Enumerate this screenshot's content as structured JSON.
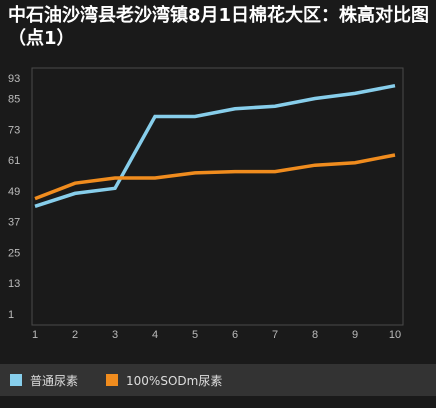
{
  "chart_data": {
    "type": "line",
    "title": "中石油沙湾县老沙湾镇8月1日棉花大区：株高对比图（点1）",
    "x": [
      "1",
      "2",
      "3",
      "4",
      "5",
      "6",
      "7",
      "8",
      "9",
      "10"
    ],
    "y_ticks": [
      "93",
      "85",
      "73",
      "61",
      "49",
      "37",
      "25",
      "13",
      "1"
    ],
    "ylim": [
      1,
      93
    ],
    "grid": true,
    "legend": "bottom-left",
    "series": [
      {
        "name": "普通尿素",
        "color": "#87ceeb",
        "values": [
          43,
          48,
          50,
          78,
          78,
          81,
          82,
          85,
          87,
          90
        ]
      },
      {
        "name": "100%SODm尿素",
        "color": "#f08c1e",
        "values": [
          46,
          52,
          54,
          54,
          56,
          56.5,
          56.5,
          59,
          60,
          63
        ]
      }
    ]
  }
}
